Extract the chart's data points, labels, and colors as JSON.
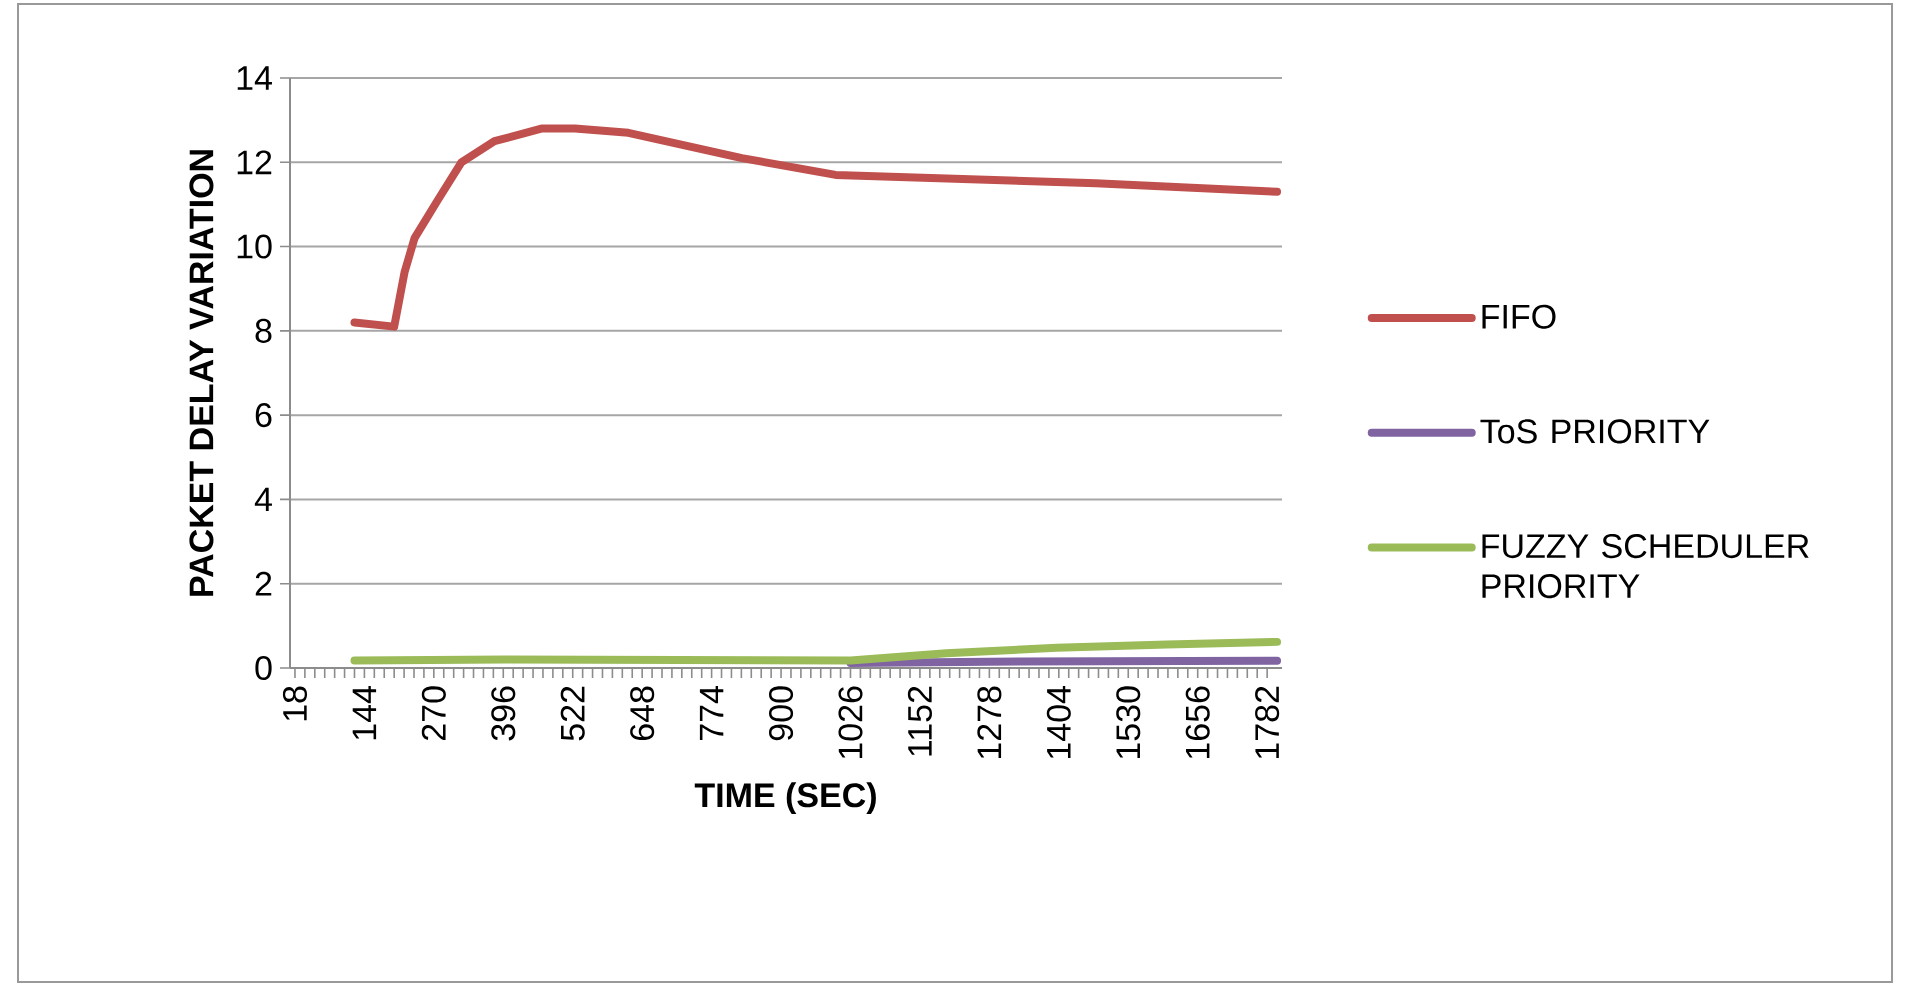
{
  "chart_data": {
    "type": "line",
    "xlabel": "TIME (SEC)",
    "ylabel": "PACKET DELAY VARIATION",
    "xlim": [
      9,
      1809
    ],
    "ylim": [
      0,
      14
    ],
    "xticks": [
      18,
      144,
      270,
      396,
      522,
      648,
      774,
      900,
      1026,
      1152,
      1278,
      1404,
      1530,
      1656,
      1782
    ],
    "yticks": [
      0,
      2,
      4,
      6,
      8,
      10,
      12,
      14
    ],
    "grid": "y",
    "legend": "right",
    "line_style": "solid",
    "series": [
      {
        "name": "FIFO",
        "color": "#c0504d",
        "x": [
          126,
          198,
          217,
          235,
          277,
          320,
          380,
          465,
          526,
          623,
          829,
          999,
          1471,
          1800
        ],
        "values": [
          8.2,
          8.1,
          9.4,
          10.2,
          11.1,
          12.0,
          12.5,
          12.8,
          12.8,
          12.7,
          12.1,
          11.7,
          11.5,
          11.3
        ]
      },
      {
        "name": "ToS PRIORITY",
        "color": "#8064a2",
        "x": [
          1026,
          1278,
          1800
        ],
        "values": [
          0.12,
          0.15,
          0.17
        ]
      },
      {
        "name": "FUZZY SCHEDULER PRIORITY",
        "color": "#9bbb59",
        "x": [
          126,
          400,
          1026,
          1200,
          1400,
          1600,
          1800
        ],
        "values": [
          0.18,
          0.2,
          0.18,
          0.35,
          0.48,
          0.56,
          0.62
        ]
      }
    ]
  }
}
